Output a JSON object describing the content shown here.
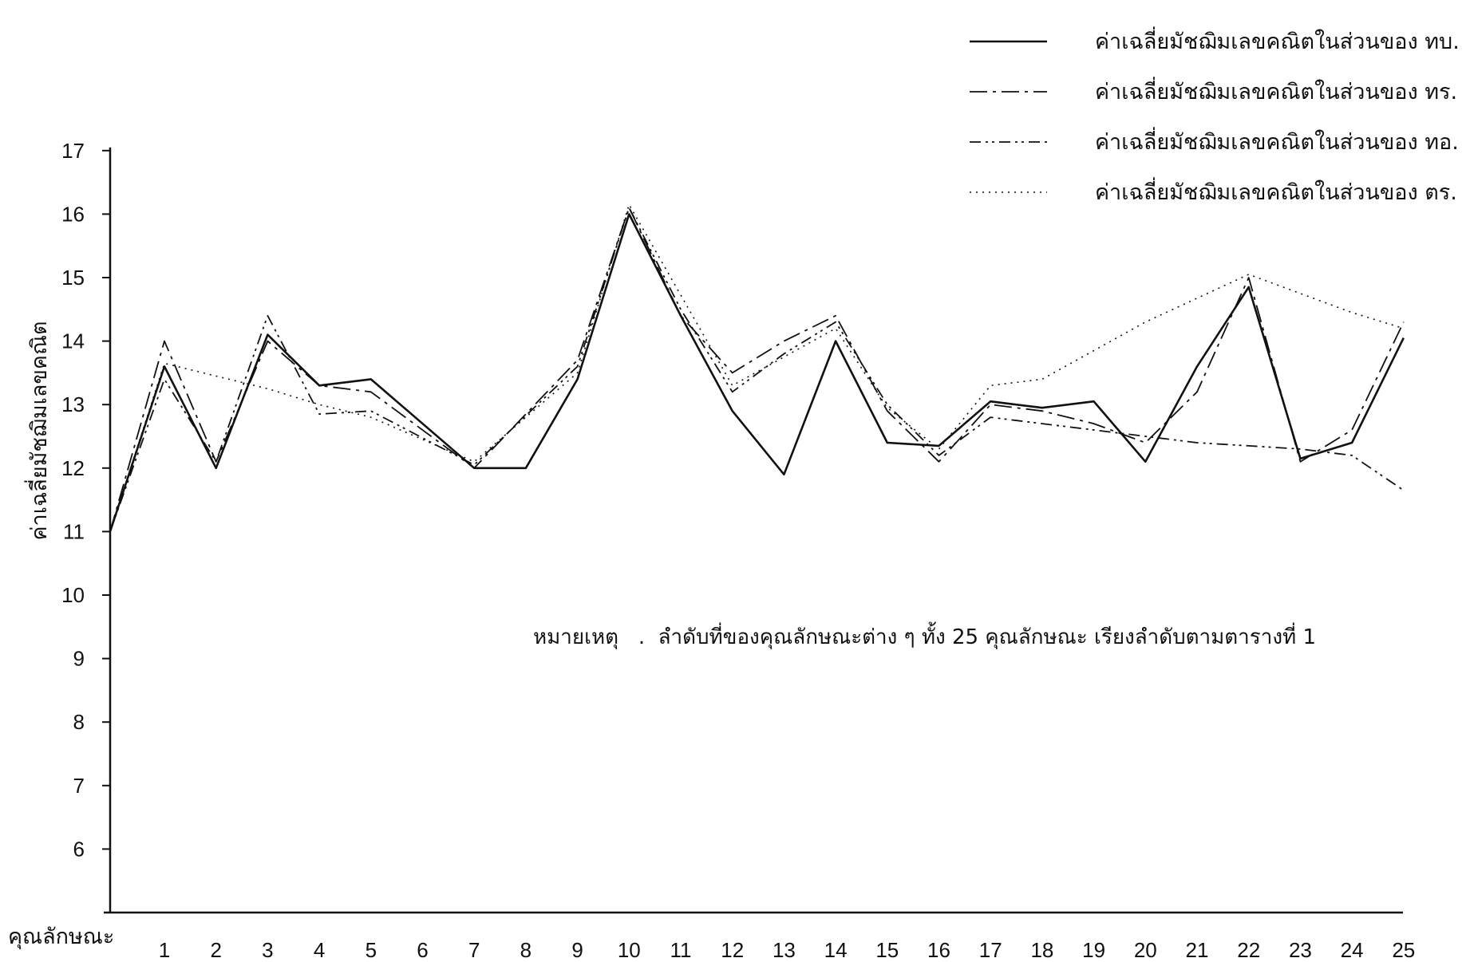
{
  "chart_data": {
    "type": "line",
    "xlabel": "คุณลักษณะ",
    "ylabel": "ค่าเฉลี่ยมัชฌิมเลขคณิต",
    "ylim": [
      5,
      17
    ],
    "yticks": [
      6,
      7,
      8,
      9,
      10,
      11,
      12,
      13,
      14,
      15,
      16,
      17
    ],
    "x": [
      1,
      2,
      3,
      4,
      5,
      6,
      7,
      8,
      9,
      10,
      11,
      12,
      13,
      14,
      15,
      16,
      17,
      18,
      19,
      20,
      21,
      22,
      23,
      24,
      25
    ],
    "start_value": 11,
    "grid": false,
    "legend_position": "top-right",
    "note": "หมายเหตุ   .  ลำดับที่ของคุณลักษณะต่าง ๆ ทั้ง 25 คุณลักษณะ เรียงลำดับตามตารางที่ 1",
    "series": [
      {
        "name": "ค่าเฉลี่ยมัชฌิมเลขคณิตในส่วนของ ทบ.",
        "style": "solid",
        "values": [
          13.6,
          12.0,
          14.1,
          13.3,
          13.4,
          null,
          12.0,
          12.0,
          13.4,
          16.0,
          14.4,
          12.9,
          11.9,
          14.0,
          12.4,
          12.35,
          13.05,
          12.95,
          13.05,
          12.1,
          13.6,
          14.85,
          12.15,
          12.4,
          14.05
        ]
      },
      {
        "name": "ค่าเฉลี่ยมัชฌิมเลขคณิตในส่วนของ ทร.",
        "style": "dashdot",
        "values": [
          14.0,
          12.1,
          14.0,
          13.3,
          13.2,
          null,
          12.0,
          null,
          13.7,
          16.1,
          14.4,
          13.5,
          14.0,
          14.4,
          12.9,
          12.1,
          13.0,
          12.9,
          12.7,
          12.4,
          13.2,
          15.0,
          12.1,
          12.6,
          14.3
        ]
      },
      {
        "name": "ค่าเฉลี่ยมัชฌิมเลขคณิตในส่วนของ ทอ.",
        "style": "dashdotdot",
        "values": [
          13.4,
          12.1,
          14.4,
          12.85,
          12.9,
          null,
          12.05,
          null,
          13.6,
          16.1,
          14.5,
          13.2,
          13.8,
          14.3,
          13.0,
          12.2,
          12.8,
          12.7,
          12.6,
          12.5,
          12.4,
          12.35,
          12.3,
          12.2,
          11.65
        ]
      },
      {
        "name": "ค่าเฉลี่ยมัชฌิมเลขคณิตในส่วนของ ตร.",
        "style": "dotted",
        "values": [
          13.65,
          null,
          13.25,
          13.0,
          12.8,
          null,
          12.1,
          null,
          13.5,
          16.15,
          null,
          13.3,
          null,
          14.2,
          12.95,
          12.3,
          13.3,
          13.4,
          null,
          14.3,
          null,
          15.05,
          null,
          14.45,
          14.2
        ]
      }
    ]
  }
}
